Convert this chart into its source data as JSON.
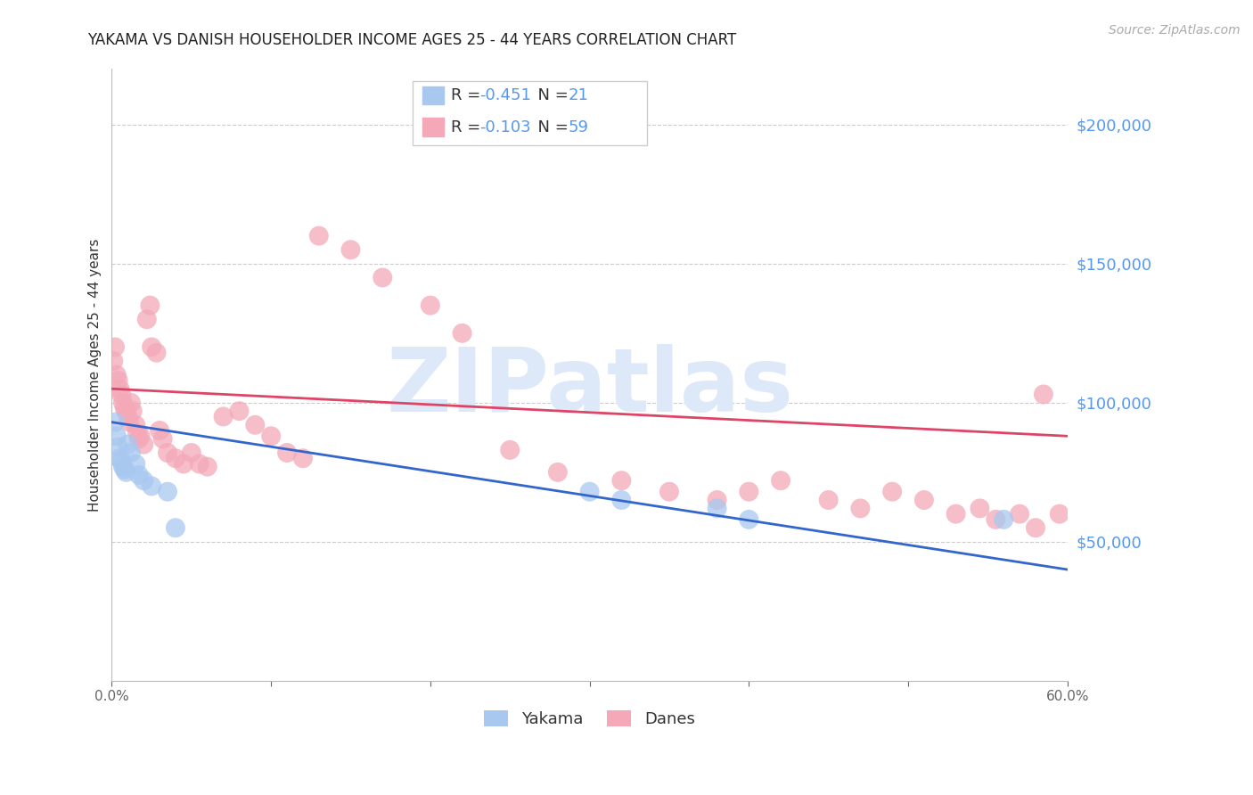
{
  "title": "YAKAMA VS DANISH HOUSEHOLDER INCOME AGES 25 - 44 YEARS CORRELATION CHART",
  "source": "Source: ZipAtlas.com",
  "ylabel": "Householder Income Ages 25 - 44 years",
  "ylabel_right_ticks": [
    "$200,000",
    "$150,000",
    "$100,000",
    "$50,000"
  ],
  "ylabel_right_values": [
    200000,
    150000,
    100000,
    50000
  ],
  "xmin": 0.0,
  "xmax": 0.6,
  "ymin": 0,
  "ymax": 220000,
  "legend_r1": "-0.451",
  "legend_n1": "21",
  "legend_r2": "-0.103",
  "legend_n2": "59",
  "legend_label1": "Yakama",
  "legend_label2": "Danes",
  "yakama_color": "#a8c8f0",
  "danes_color": "#f4a8b8",
  "trendline_blue": "#3366cc",
  "trendline_pink": "#dd4466",
  "watermark_text": "ZIPatlas",
  "watermark_color": "#dde8f8",
  "yakama_x": [
    0.002,
    0.003,
    0.004,
    0.005,
    0.006,
    0.007,
    0.008,
    0.009,
    0.01,
    0.012,
    0.015,
    0.017,
    0.02,
    0.025,
    0.035,
    0.04,
    0.3,
    0.32,
    0.38,
    0.4,
    0.56
  ],
  "yakama_y": [
    93000,
    88000,
    84000,
    80000,
    79000,
    77000,
    76000,
    75000,
    85000,
    82000,
    78000,
    74000,
    72000,
    70000,
    68000,
    55000,
    68000,
    65000,
    62000,
    58000,
    58000
  ],
  "danes_x": [
    0.001,
    0.002,
    0.003,
    0.004,
    0.005,
    0.006,
    0.007,
    0.008,
    0.009,
    0.01,
    0.011,
    0.012,
    0.013,
    0.015,
    0.016,
    0.017,
    0.018,
    0.02,
    0.022,
    0.024,
    0.025,
    0.028,
    0.03,
    0.032,
    0.035,
    0.04,
    0.045,
    0.05,
    0.055,
    0.06,
    0.07,
    0.08,
    0.09,
    0.1,
    0.11,
    0.12,
    0.13,
    0.15,
    0.17,
    0.2,
    0.22,
    0.25,
    0.28,
    0.32,
    0.35,
    0.38,
    0.4,
    0.42,
    0.45,
    0.47,
    0.49,
    0.51,
    0.53,
    0.545,
    0.555,
    0.57,
    0.58,
    0.585,
    0.595
  ],
  "danes_y": [
    115000,
    120000,
    110000,
    108000,
    105000,
    103000,
    100000,
    98000,
    97000,
    95000,
    93000,
    100000,
    97000,
    92000,
    89000,
    87000,
    88000,
    85000,
    130000,
    135000,
    120000,
    118000,
    90000,
    87000,
    82000,
    80000,
    78000,
    82000,
    78000,
    77000,
    95000,
    97000,
    92000,
    88000,
    82000,
    80000,
    160000,
    155000,
    145000,
    135000,
    125000,
    83000,
    75000,
    72000,
    68000,
    65000,
    68000,
    72000,
    65000,
    62000,
    68000,
    65000,
    60000,
    62000,
    58000,
    60000,
    55000,
    103000,
    60000
  ]
}
